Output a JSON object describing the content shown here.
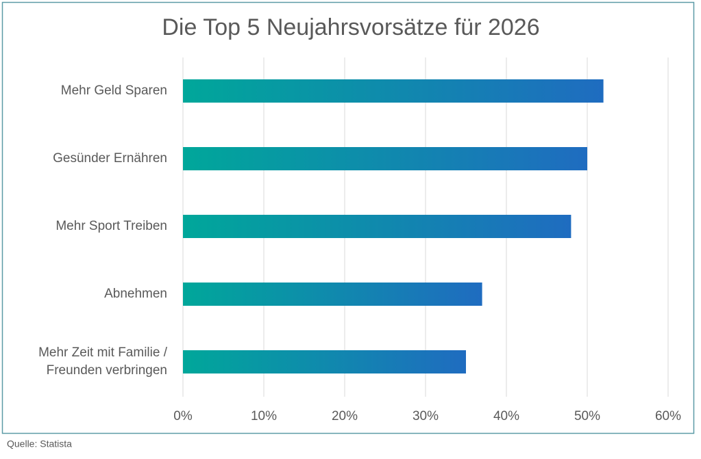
{
  "chart_data": {
    "type": "hbar",
    "title": "Die Top 5 Neujahrsvorsätze für 2026",
    "categories": [
      "Mehr Geld Sparen",
      "Gesünder Ernähren",
      "Mehr Sport Treiben",
      "Abnehmen",
      "Mehr Zeit mit Familie / Freunden verbringen"
    ],
    "values": [
      52,
      50,
      48,
      37,
      35
    ],
    "colors": [
      "#00a79a",
      "#1f6cc0"
    ],
    "xlim": [
      0,
      60
    ],
    "xticks": [
      {
        "value": 0,
        "label": "0%"
      },
      {
        "value": 10,
        "label": "10%"
      },
      {
        "value": 20,
        "label": "20%"
      },
      {
        "value": 30,
        "label": "30%"
      },
      {
        "value": 40,
        "label": "40%"
      },
      {
        "value": 50,
        "label": "50%"
      },
      {
        "value": 60,
        "label": "60%"
      }
    ],
    "grid": true,
    "source": "Quelle: Statista"
  }
}
